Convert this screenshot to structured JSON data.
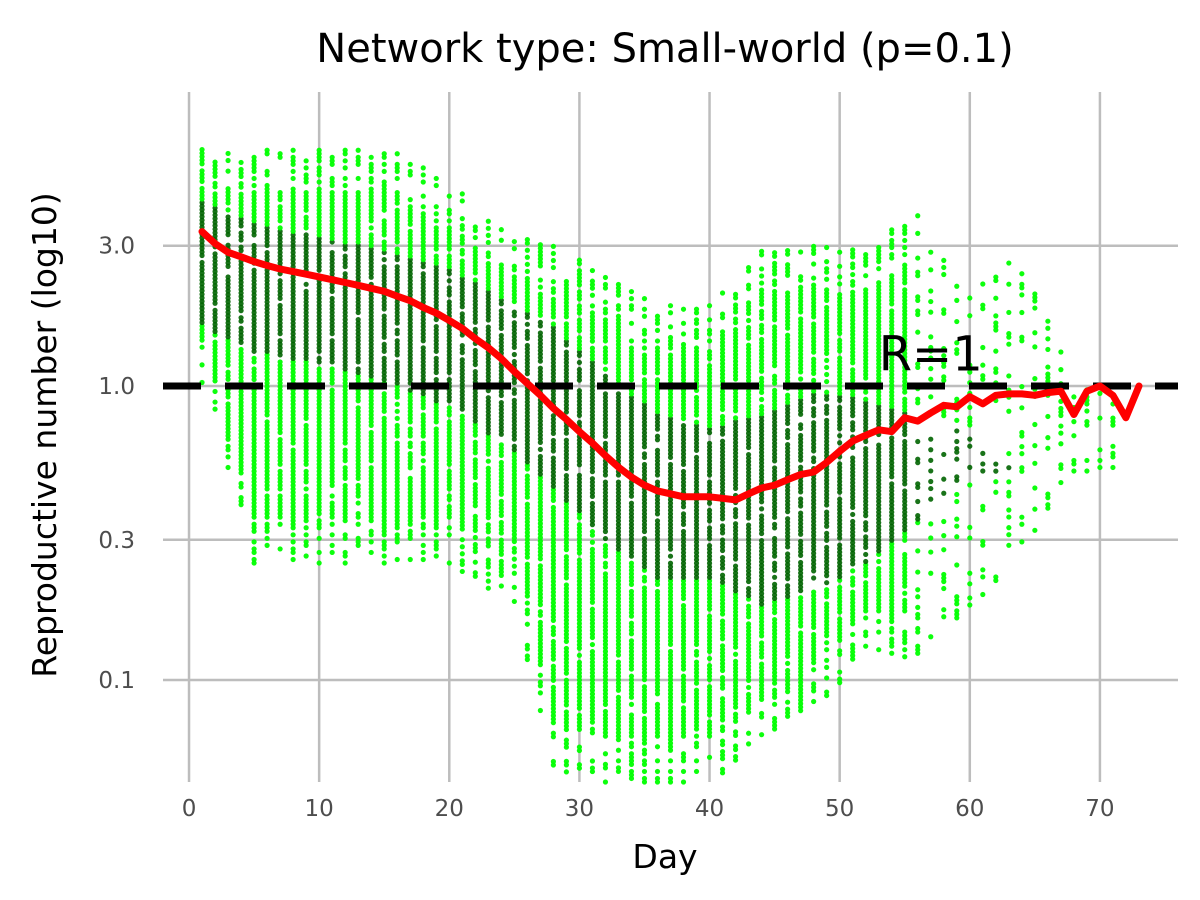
{
  "chart_data": {
    "type": "scatter",
    "title": "Network type: Small-world (p=0.1)",
    "xlabel": "Day",
    "ylabel": "Reproductive number (log10)",
    "x_range": [
      -2,
      76
    ],
    "y_range": [
      0.045,
      10.0
    ],
    "y_scale": "log10",
    "grid": true,
    "x_ticks": [
      {
        "value": 0,
        "label": "0"
      },
      {
        "value": 10,
        "label": "10"
      },
      {
        "value": 20,
        "label": "20"
      },
      {
        "value": 30,
        "label": "30"
      },
      {
        "value": 40,
        "label": "40"
      },
      {
        "value": 50,
        "label": "50"
      },
      {
        "value": 60,
        "label": "60"
      },
      {
        "value": 70,
        "label": "70"
      }
    ],
    "y_ticks": [
      {
        "value": 0.1,
        "label": "0.1"
      },
      {
        "value": 0.3,
        "label": "0.3"
      },
      {
        "value": 1.0,
        "label": "1.0"
      },
      {
        "value": 3.0,
        "label": "3.0"
      }
    ],
    "reference_line": {
      "y": 1.0,
      "style": "dashed",
      "color": "#000000",
      "label": "R=1",
      "label_x": 57,
      "label_y": 1.3
    },
    "colors": {
      "points_light": "#00ff00",
      "points_dark": "#006400",
      "median_line": "#ff0000",
      "grid": "#bdbdbd"
    },
    "scatter_envelope": [
      {
        "day": 1,
        "low": 1.0,
        "high": 6.5,
        "core_low": 1.6,
        "core_high": 4.3
      },
      {
        "day": 5,
        "low": 0.25,
        "high": 6.5,
        "core_low": 1.3,
        "core_high": 3.6
      },
      {
        "day": 10,
        "low": 0.25,
        "high": 6.5,
        "core_low": 1.2,
        "core_high": 3.2
      },
      {
        "day": 15,
        "low": 0.25,
        "high": 6.5,
        "core_low": 1.05,
        "core_high": 2.9
      },
      {
        "day": 20,
        "low": 0.25,
        "high": 5.0,
        "core_low": 0.85,
        "core_high": 2.5
      },
      {
        "day": 25,
        "low": 0.18,
        "high": 3.3,
        "core_low": 0.6,
        "core_high": 1.9
      },
      {
        "day": 28,
        "low": 0.05,
        "high": 3.0,
        "core_low": 0.45,
        "core_high": 1.6
      },
      {
        "day": 32,
        "low": 0.045,
        "high": 2.4,
        "core_low": 0.3,
        "core_high": 1.1
      },
      {
        "day": 36,
        "low": 0.045,
        "high": 1.9,
        "core_low": 0.22,
        "core_high": 0.8
      },
      {
        "day": 40,
        "low": 0.045,
        "high": 1.9,
        "core_low": 0.22,
        "core_high": 0.72
      },
      {
        "day": 44,
        "low": 0.06,
        "high": 3.0,
        "core_low": 0.18,
        "core_high": 0.8
      },
      {
        "day": 48,
        "low": 0.08,
        "high": 3.0,
        "core_low": 0.2,
        "core_high": 0.95
      },
      {
        "day": 52,
        "low": 0.12,
        "high": 3.0,
        "core_low": 0.25,
        "core_high": 0.9
      },
      {
        "day": 56,
        "low": 0.12,
        "high": 3.9,
        "core_low": 0.35,
        "core_high": 0.8
      },
      {
        "day": 60,
        "low": 0.18,
        "high": 2.1,
        "core_low": 0.5,
        "core_high": 0.7
      },
      {
        "day": 64,
        "low": 0.25,
        "high": 3.0,
        "core_low": 0.5,
        "core_high": 0.5
      },
      {
        "day": 68,
        "low": 0.5,
        "high": 1.0,
        "core_low": 0.5,
        "core_high": 0.5
      },
      {
        "day": 71,
        "low": 0.5,
        "high": 1.0,
        "core_low": 0.5,
        "core_high": 0.5
      }
    ],
    "series": [
      {
        "values": [
          {
            "x": 1,
            "y": 3.35
          },
          {
            "x": 2,
            "y": 3.05
          },
          {
            "x": 3,
            "y": 2.85
          },
          {
            "x": 4,
            "y": 2.75
          },
          {
            "x": 5,
            "y": 2.65
          },
          {
            "x": 6,
            "y": 2.57
          },
          {
            "x": 7,
            "y": 2.5
          },
          {
            "x": 8,
            "y": 2.45
          },
          {
            "x": 9,
            "y": 2.4
          },
          {
            "x": 10,
            "y": 2.35
          },
          {
            "x": 11,
            "y": 2.3
          },
          {
            "x": 12,
            "y": 2.25
          },
          {
            "x": 13,
            "y": 2.2
          },
          {
            "x": 14,
            "y": 2.15
          },
          {
            "x": 15,
            "y": 2.1
          },
          {
            "x": 16,
            "y": 2.02
          },
          {
            "x": 17,
            "y": 1.95
          },
          {
            "x": 18,
            "y": 1.85
          },
          {
            "x": 19,
            "y": 1.77
          },
          {
            "x": 20,
            "y": 1.67
          },
          {
            "x": 21,
            "y": 1.57
          },
          {
            "x": 22,
            "y": 1.45
          },
          {
            "x": 23,
            "y": 1.35
          },
          {
            "x": 24,
            "y": 1.24
          },
          {
            "x": 25,
            "y": 1.12
          },
          {
            "x": 26,
            "y": 1.02
          },
          {
            "x": 27,
            "y": 0.93
          },
          {
            "x": 28,
            "y": 0.84
          },
          {
            "x": 29,
            "y": 0.77
          },
          {
            "x": 30,
            "y": 0.7
          },
          {
            "x": 31,
            "y": 0.64
          },
          {
            "x": 32,
            "y": 0.58
          },
          {
            "x": 33,
            "y": 0.53
          },
          {
            "x": 34,
            "y": 0.49
          },
          {
            "x": 35,
            "y": 0.46
          },
          {
            "x": 36,
            "y": 0.44
          },
          {
            "x": 37,
            "y": 0.43
          },
          {
            "x": 38,
            "y": 0.42
          },
          {
            "x": 39,
            "y": 0.42
          },
          {
            "x": 40,
            "y": 0.42
          },
          {
            "x": 41,
            "y": 0.415
          },
          {
            "x": 42,
            "y": 0.41
          },
          {
            "x": 43,
            "y": 0.43
          },
          {
            "x": 44,
            "y": 0.45
          },
          {
            "x": 45,
            "y": 0.46
          },
          {
            "x": 46,
            "y": 0.48
          },
          {
            "x": 47,
            "y": 0.5
          },
          {
            "x": 48,
            "y": 0.51
          },
          {
            "x": 49,
            "y": 0.55
          },
          {
            "x": 50,
            "y": 0.6
          },
          {
            "x": 51,
            "y": 0.65
          },
          {
            "x": 52,
            "y": 0.68
          },
          {
            "x": 53,
            "y": 0.71
          },
          {
            "x": 54,
            "y": 0.7
          },
          {
            "x": 55,
            "y": 0.78
          },
          {
            "x": 56,
            "y": 0.76
          },
          {
            "x": 57,
            "y": 0.81
          },
          {
            "x": 58,
            "y": 0.86
          },
          {
            "x": 59,
            "y": 0.85
          },
          {
            "x": 60,
            "y": 0.92
          },
          {
            "x": 61,
            "y": 0.87
          },
          {
            "x": 62,
            "y": 0.93
          },
          {
            "x": 63,
            "y": 0.94
          },
          {
            "x": 64,
            "y": 0.94
          },
          {
            "x": 65,
            "y": 0.93
          },
          {
            "x": 66,
            "y": 0.95
          },
          {
            "x": 67,
            "y": 0.96
          },
          {
            "x": 68,
            "y": 0.8
          },
          {
            "x": 69,
            "y": 0.96
          },
          {
            "x": 70,
            "y": 1.0
          },
          {
            "x": 71,
            "y": 0.93
          },
          {
            "x": 72,
            "y": 0.78
          },
          {
            "x": 73,
            "y": 1.0
          }
        ]
      }
    ]
  }
}
